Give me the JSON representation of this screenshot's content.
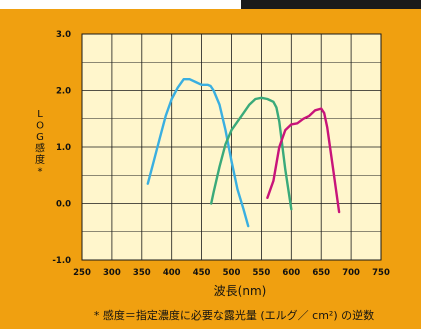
{
  "colors": {
    "panel": "#F0A010",
    "top_strip": "#1A1A1A",
    "plot_bg": "#FFF6CC",
    "grid": "#1A1A1A",
    "text": "#111111"
  },
  "chart_data": {
    "type": "line",
    "title": "",
    "xlabel": "波長(nm)",
    "ylabel": "LOG感度*",
    "xlim": [
      250,
      750
    ],
    "ylim": [
      -1.0,
      3.0
    ],
    "x_ticks": [
      250,
      300,
      350,
      400,
      450,
      500,
      550,
      600,
      650,
      700,
      750
    ],
    "y_ticks": [
      -1.0,
      0.0,
      1.0,
      2.0,
      3.0
    ],
    "x_tick_labels": [
      "250",
      "300",
      "350",
      "400",
      "450",
      "500",
      "550",
      "600",
      "650",
      "700",
      "750"
    ],
    "y_tick_labels": [
      "-1.0",
      "0.0",
      "1.0",
      "2.0",
      "3.0"
    ],
    "grid": true,
    "legend": "none",
    "footnote": "* 感度＝指定濃度に必要な露光量 (エルグ／ cm²) の逆数",
    "series": [
      {
        "color": "#3AAFE0",
        "x": [
          360,
          370,
          380,
          390,
          400,
          410,
          420,
          430,
          440,
          450,
          460,
          465,
          470,
          480,
          490,
          500,
          510,
          520,
          528
        ],
        "y": [
          0.35,
          0.75,
          1.15,
          1.55,
          1.85,
          2.05,
          2.2,
          2.2,
          2.15,
          2.1,
          2.1,
          2.08,
          2.0,
          1.75,
          1.3,
          0.75,
          0.25,
          -0.1,
          -0.4
        ]
      },
      {
        "color": "#3AAA7A",
        "x": [
          466,
          470,
          480,
          490,
          500,
          510,
          520,
          530,
          540,
          550,
          560,
          570,
          575,
          580,
          590,
          600
        ],
        "y": [
          0.0,
          0.2,
          0.65,
          1.05,
          1.3,
          1.45,
          1.6,
          1.75,
          1.85,
          1.87,
          1.85,
          1.8,
          1.7,
          1.45,
          0.6,
          -0.1
        ]
      },
      {
        "color": "#C8147A",
        "x": [
          560,
          570,
          580,
          590,
          600,
          610,
          620,
          630,
          640,
          650,
          655,
          660,
          670,
          680
        ],
        "y": [
          0.1,
          0.4,
          1.0,
          1.3,
          1.4,
          1.42,
          1.5,
          1.55,
          1.65,
          1.68,
          1.6,
          1.35,
          0.6,
          -0.15
        ]
      }
    ]
  }
}
